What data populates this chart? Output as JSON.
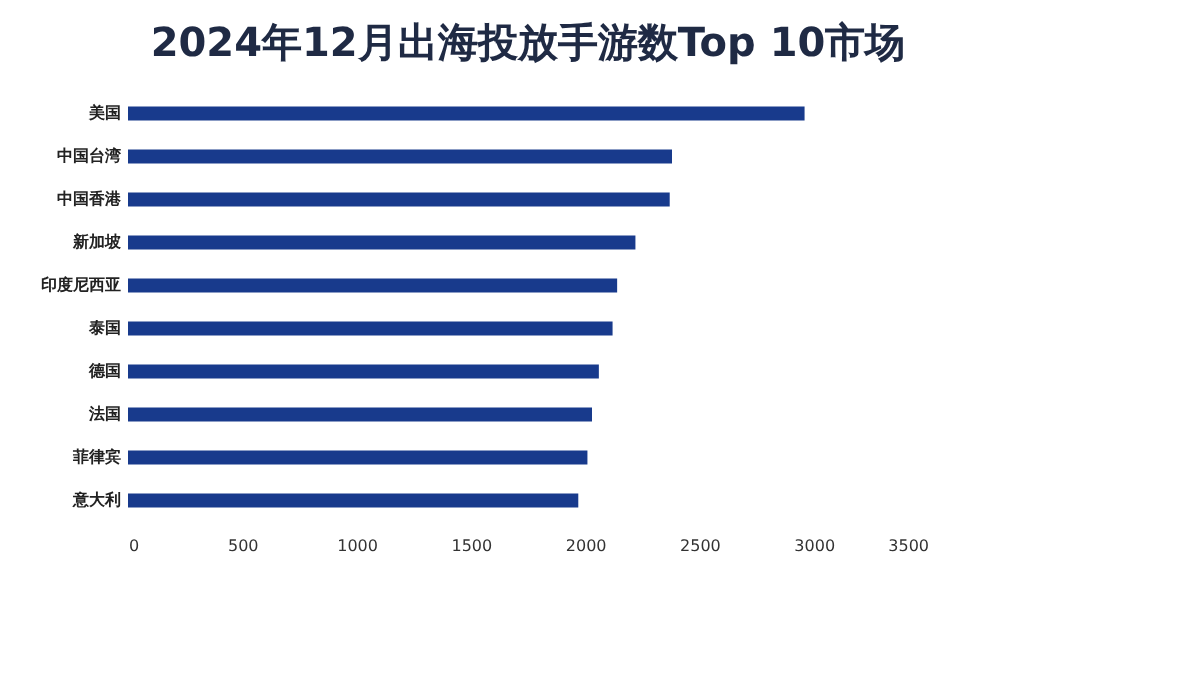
{
  "chart_data": {
    "type": "bar",
    "orientation": "horizontal",
    "title": "2024年12月出海投放手游数Top 10市场",
    "categories": [
      "美国",
      "中国台湾",
      "中国香港",
      "新加坡",
      "印度尼西亚",
      "泰国",
      "德国",
      "法国",
      "菲律宾",
      "意大利"
    ],
    "values": [
      2960,
      2380,
      2370,
      2220,
      2140,
      2120,
      2060,
      2030,
      2010,
      1970
    ],
    "color": "#183a8c",
    "xlim": [
      0,
      3500
    ],
    "xticks": [
      0,
      500,
      1000,
      1500,
      2000,
      2500,
      3000,
      3500
    ],
    "grid": false
  }
}
